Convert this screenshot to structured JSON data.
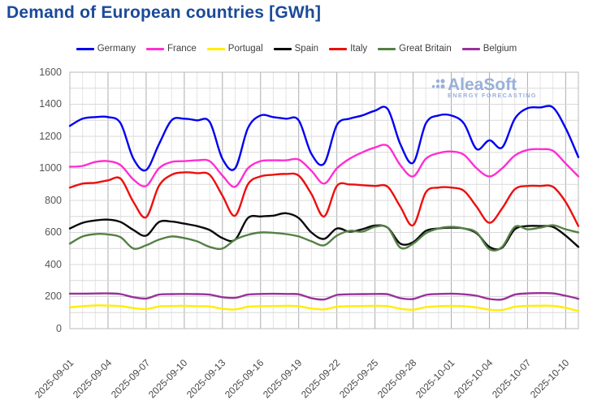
{
  "title": "Demand of European countries [GWh]",
  "watermark": {
    "name": "AleaSoft",
    "subtitle": "ENERGY FORECASTING",
    "color": "#8ea9d8"
  },
  "colors": {
    "title": "#1a4a99",
    "grid_minor_vertical": "#e4e4e4",
    "grid_major_vertical": "#adadad",
    "grid_horizontal": "#d9d9d9",
    "plot_border": "#b8b8b8",
    "tick_text": "#474747"
  },
  "chart_data": {
    "type": "line",
    "title": "Demand of European countries [GWh]",
    "xlabel": "",
    "ylabel": "",
    "ylim": [
      0,
      1600
    ],
    "y_tick_step": 200,
    "grid_minor_step": 100,
    "grid": "on",
    "legend_position": "top",
    "x": [
      "2025-09-01",
      "2025-09-02",
      "2025-09-03",
      "2025-09-04",
      "2025-09-05",
      "2025-09-06",
      "2025-09-07",
      "2025-09-08",
      "2025-09-09",
      "2025-09-10",
      "2025-09-11",
      "2025-09-12",
      "2025-09-13",
      "2025-09-14",
      "2025-09-15",
      "2025-09-16",
      "2025-09-17",
      "2025-09-18",
      "2025-09-19",
      "2025-09-20",
      "2025-09-21",
      "2025-09-22",
      "2025-09-23",
      "2025-09-24",
      "2025-09-25",
      "2025-09-26",
      "2025-09-27",
      "2025-09-28",
      "2025-09-29",
      "2025-09-30",
      "2025-10-01",
      "2025-10-02",
      "2025-10-03",
      "2025-10-04",
      "2025-10-05",
      "2025-10-06",
      "2025-10-07",
      "2025-10-08",
      "2025-10-09",
      "2025-10-10",
      "2025-10-11"
    ],
    "x_tick_labels": [
      "2025-09-01",
      "2025-09-04",
      "2025-09-07",
      "2025-09-10",
      "2025-09-13",
      "2025-09-16",
      "2025-09-19",
      "2025-09-22",
      "2025-09-25",
      "2025-09-28",
      "2025-10-01",
      "2025-10-04",
      "2025-10-07",
      "2025-10-10"
    ],
    "x_tick_every": 3,
    "series": [
      {
        "name": "Germany",
        "color": "#0202f0",
        "values": [
          1265,
          1310,
          1320,
          1320,
          1280,
          1060,
          990,
          1150,
          1300,
          1310,
          1300,
          1290,
          1060,
          1000,
          1250,
          1330,
          1320,
          1310,
          1300,
          1090,
          1030,
          1270,
          1310,
          1330,
          1360,
          1370,
          1150,
          1035,
          1280,
          1330,
          1330,
          1280,
          1120,
          1175,
          1130,
          1310,
          1375,
          1380,
          1380,
          1250,
          1070
        ]
      },
      {
        "name": "France",
        "color": "#ff2ed2",
        "values": [
          1010,
          1015,
          1040,
          1045,
          1020,
          930,
          890,
          1000,
          1040,
          1045,
          1050,
          1045,
          955,
          885,
          1000,
          1045,
          1050,
          1050,
          1055,
          985,
          905,
          1000,
          1060,
          1100,
          1130,
          1140,
          1020,
          950,
          1060,
          1095,
          1105,
          1085,
          1000,
          950,
          1000,
          1080,
          1115,
          1120,
          1110,
          1030,
          950
        ]
      },
      {
        "name": "Portugal",
        "color": "#ffee00",
        "values": [
          133,
          140,
          145,
          144,
          141,
          128,
          122,
          138,
          141,
          142,
          140,
          138,
          124,
          120,
          136,
          140,
          141,
          142,
          140,
          126,
          120,
          136,
          140,
          141,
          142,
          140,
          124,
          118,
          134,
          140,
          142,
          140,
          132,
          118,
          116,
          136,
          142,
          143,
          142,
          130,
          110
        ]
      },
      {
        "name": "Spain",
        "color": "#0a0a0a",
        "values": [
          625,
          660,
          675,
          680,
          665,
          615,
          580,
          665,
          668,
          655,
          640,
          615,
          565,
          555,
          690,
          700,
          705,
          720,
          690,
          600,
          560,
          625,
          605,
          620,
          643,
          630,
          530,
          540,
          610,
          625,
          630,
          625,
          595,
          510,
          505,
          620,
          640,
          640,
          635,
          580,
          510
        ]
      },
      {
        "name": "Italy",
        "color": "#ee0e0e",
        "values": [
          880,
          905,
          910,
          925,
          935,
          790,
          695,
          890,
          960,
          975,
          970,
          960,
          830,
          705,
          900,
          950,
          960,
          965,
          955,
          840,
          700,
          890,
          900,
          895,
          890,
          885,
          760,
          645,
          850,
          880,
          880,
          860,
          760,
          660,
          750,
          870,
          890,
          890,
          885,
          790,
          640
        ]
      },
      {
        "name": "Great Britain",
        "color": "#558045",
        "values": [
          530,
          575,
          590,
          588,
          570,
          500,
          520,
          555,
          575,
          565,
          545,
          510,
          500,
          555,
          585,
          600,
          598,
          590,
          575,
          545,
          520,
          580,
          610,
          605,
          635,
          630,
          505,
          530,
          595,
          625,
          635,
          625,
          600,
          495,
          510,
          635,
          620,
          630,
          645,
          620,
          600
        ]
      },
      {
        "name": "Belgium",
        "color": "#993299",
        "values": [
          218,
          218,
          219,
          220,
          215,
          196,
          188,
          212,
          215,
          216,
          215,
          212,
          196,
          192,
          212,
          216,
          217,
          216,
          214,
          190,
          182,
          210,
          214,
          215,
          216,
          214,
          190,
          185,
          210,
          216,
          218,
          214,
          205,
          185,
          182,
          212,
          220,
          222,
          220,
          205,
          186
        ]
      }
    ]
  }
}
